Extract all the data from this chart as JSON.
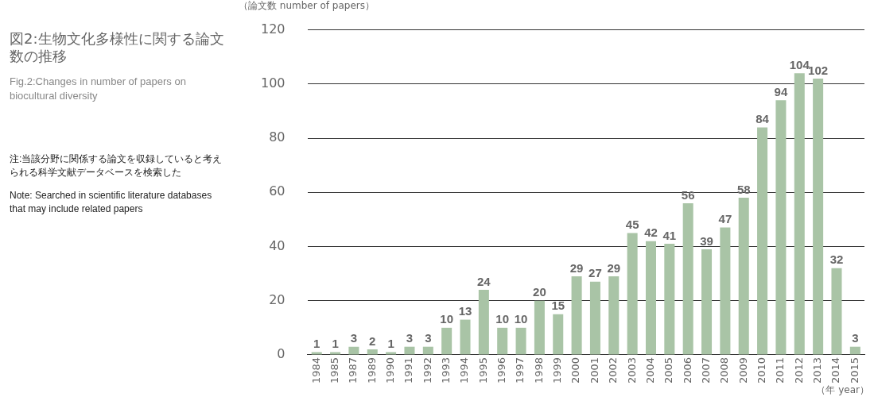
{
  "chart_data": {
    "type": "bar",
    "title": "図2:生物文化多様性に関する論文数の推移",
    "subtitle": "Fig.2:Changes in number of papers on biocultural diversity",
    "ylabel": "（論文数 number of papers）",
    "xlabel": "（年 year）",
    "annotations": [
      "注:当該分野に関係する論文を収録していると考えられる科学文献データベースを検索した",
      "Note: Searched in scientific literature databases that may include related papers"
    ],
    "categories": [
      "1984",
      "1985",
      "1987",
      "1989",
      "1990",
      "1991",
      "1992",
      "1993",
      "1994",
      "1995",
      "1996",
      "1997",
      "1998",
      "1999",
      "2000",
      "2001",
      "2002",
      "2003",
      "2004",
      "2005",
      "2006",
      "2007",
      "2008",
      "2009",
      "2010",
      "2011",
      "2012",
      "2013",
      "2014",
      "2015"
    ],
    "values": [
      1,
      1,
      3,
      2,
      1,
      3,
      3,
      10,
      13,
      24,
      10,
      10,
      20,
      15,
      29,
      27,
      29,
      45,
      42,
      41,
      56,
      39,
      47,
      58,
      84,
      94,
      104,
      102,
      32,
      3
    ],
    "color": "#a9c4a6",
    "ylim": [
      0,
      120
    ],
    "yticks": [
      0,
      20,
      40,
      60,
      80,
      100,
      120
    ],
    "grid": "y",
    "data_labels": true,
    "legend": false
  }
}
